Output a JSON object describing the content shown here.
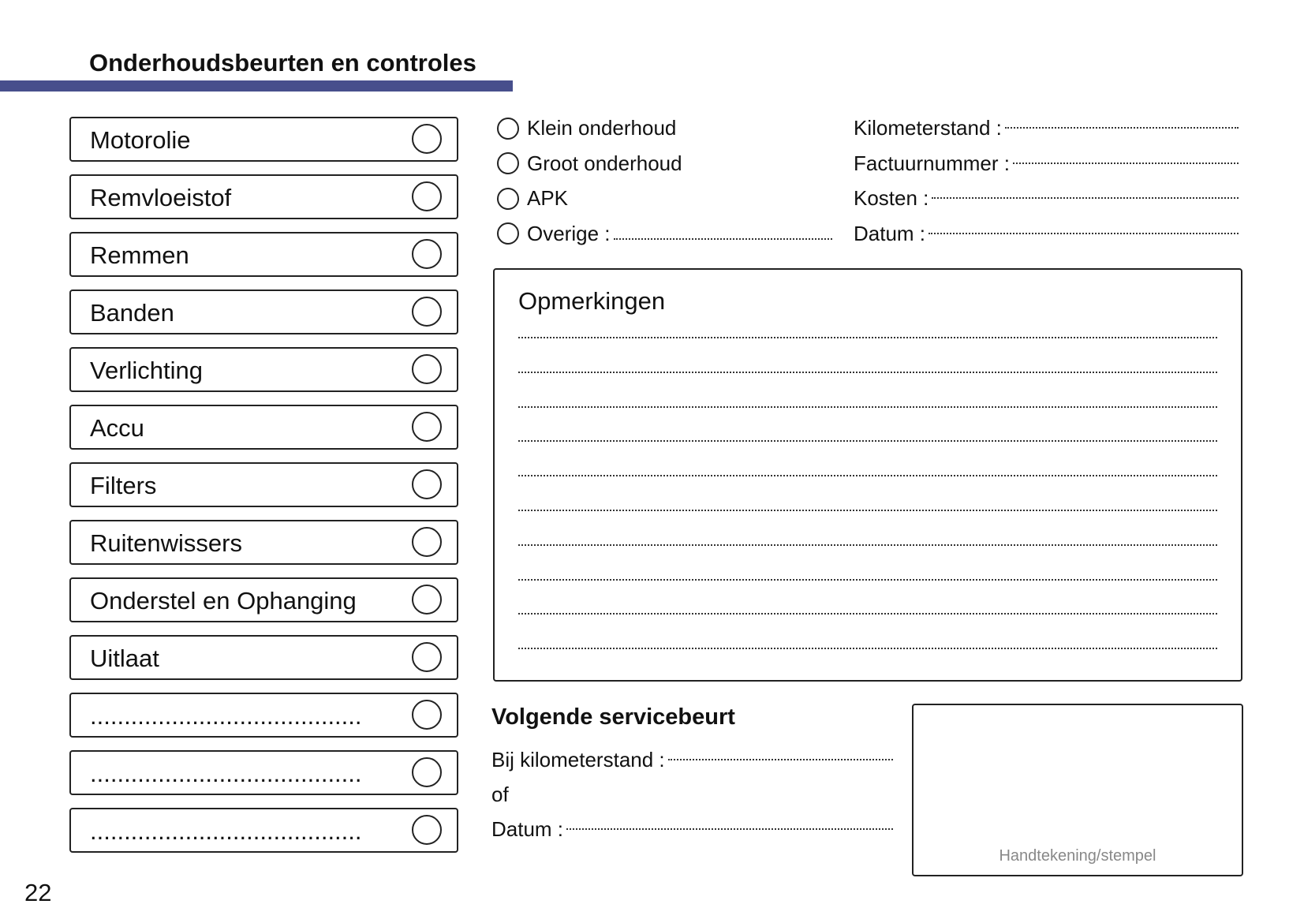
{
  "header": {
    "title": "Onderhoudsbeurten en controles",
    "accent_color": "#474f8c"
  },
  "checklist": [
    {
      "label": "Motorolie"
    },
    {
      "label": "Remvloeistof"
    },
    {
      "label": "Remmen"
    },
    {
      "label": "Banden"
    },
    {
      "label": "Verlichting"
    },
    {
      "label": "Accu"
    },
    {
      "label": "Filters"
    },
    {
      "label": "Ruitenwissers"
    },
    {
      "label": "Onderstel en Ophanging"
    },
    {
      "label": "Uitlaat"
    },
    {
      "label": "........................................"
    },
    {
      "label": "........................................"
    },
    {
      "label": "........................................"
    }
  ],
  "service_type": [
    {
      "label": "Klein onderhoud"
    },
    {
      "label": "Groot onderhoud"
    },
    {
      "label": "APK"
    },
    {
      "label": "Overige :"
    }
  ],
  "fields": [
    {
      "label": "Kilometerstand :"
    },
    {
      "label": "Factuurnummer :"
    },
    {
      "label": "Kosten :"
    },
    {
      "label": "Datum :"
    }
  ],
  "notes": {
    "title": "Opmerkingen"
  },
  "next_service": {
    "title": "Volgende servicebeurt",
    "km_label": "Bij kilometerstand :",
    "or_label": "of",
    "date_label": "Datum :"
  },
  "signature": {
    "label": "Handtekening/stempel"
  },
  "page_number": "22"
}
